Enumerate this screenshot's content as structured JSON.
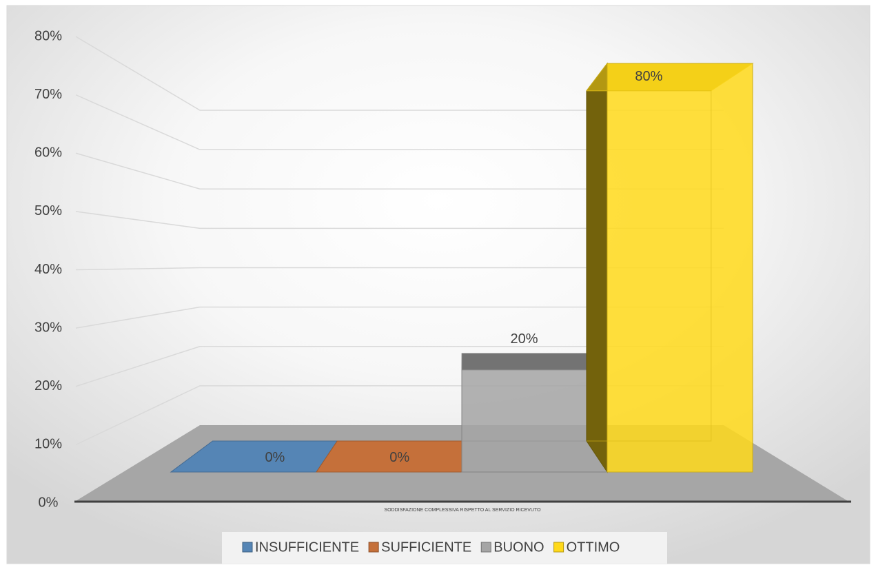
{
  "chart_data": {
    "type": "bar3d",
    "categories": [
      "SODDISFAZIONE COMPLESSIVA RISPETTO AL SERVIZIO RICEVUTO"
    ],
    "series": [
      {
        "name": "INSUFFICIENTE",
        "color": "#5585b5",
        "values": [
          0
        ],
        "value_labels": [
          "0%"
        ]
      },
      {
        "name": "SUFFICIENTE",
        "color": "#c5703a",
        "values": [
          0
        ],
        "value_labels": [
          "0%"
        ]
      },
      {
        "name": "BUONO",
        "color": "#a5a5a5",
        "values": [
          20
        ],
        "value_labels": [
          "20%"
        ]
      },
      {
        "name": "OTTIMO",
        "color": "#ffd91a",
        "values": [
          80
        ],
        "value_labels": [
          "80%"
        ]
      }
    ],
    "ylim": [
      0,
      80
    ],
    "yticks": [
      {
        "value": 0,
        "label": "0%"
      },
      {
        "value": 10,
        "label": "10%"
      },
      {
        "value": 20,
        "label": "20%"
      },
      {
        "value": 30,
        "label": "30%"
      },
      {
        "value": 40,
        "label": "40%"
      },
      {
        "value": 50,
        "label": "50%"
      },
      {
        "value": 60,
        "label": "60%"
      },
      {
        "value": 70,
        "label": "70%"
      },
      {
        "value": 80,
        "label": "80%"
      }
    ],
    "grid": true,
    "legend": "bottom"
  }
}
